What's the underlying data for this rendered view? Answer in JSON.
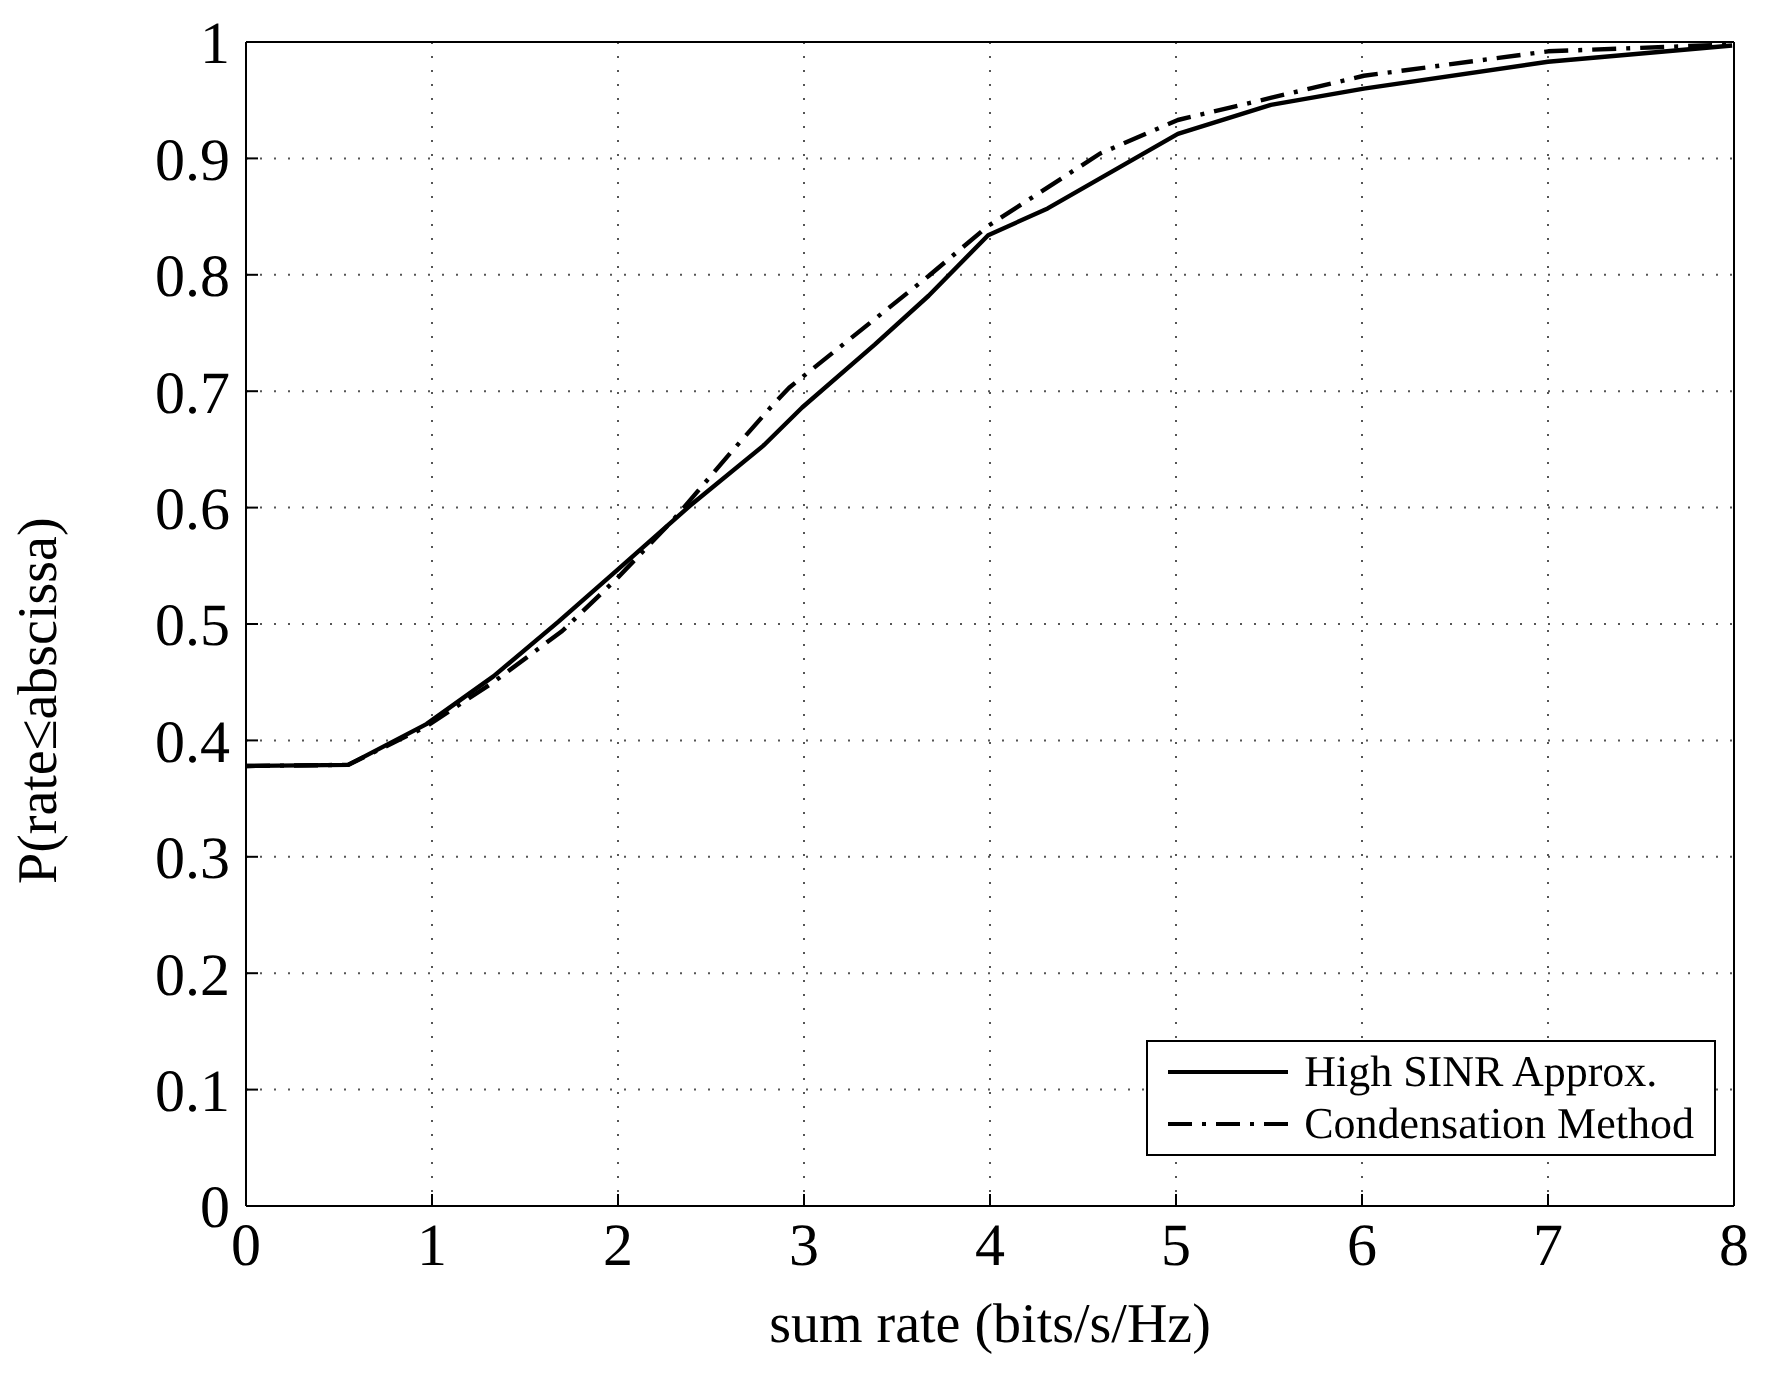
{
  "chart_data": {
    "type": "line",
    "xlabel": "sum rate (bits/s/Hz)",
    "ylabel": "P(rate≤abscissa)",
    "xlim": [
      0,
      8
    ],
    "ylim": [
      0,
      1
    ],
    "xticks": [
      0,
      1,
      2,
      3,
      4,
      5,
      6,
      7,
      8
    ],
    "yticks": [
      0,
      0.1,
      0.2,
      0.3,
      0.4,
      0.5,
      0.6,
      0.7,
      0.8,
      0.9,
      1
    ],
    "grid": true,
    "legend": "bottom right",
    "marker": "none",
    "series": [
      {
        "name": "High SINR Approx.",
        "color": "#000000",
        "line_style": "solid",
        "x": [
          0,
          0.55,
          0.97,
          1.33,
          1.68,
          2.0,
          2.39,
          2.78,
          2.99,
          3.38,
          3.67,
          3.99,
          4.31,
          5.01,
          5.51,
          6.01,
          7.0,
          7.99
        ],
        "values": [
          0.378,
          0.379,
          0.414,
          0.455,
          0.502,
          0.547,
          0.602,
          0.653,
          0.686,
          0.74,
          0.782,
          0.834,
          0.857,
          0.921,
          0.946,
          0.96,
          0.983,
          0.997
        ]
      },
      {
        "name": "Condensation Method",
        "color": "#000000",
        "line_style": "dashdot",
        "x": [
          0,
          0.55,
          0.97,
          1.33,
          1.7,
          2.0,
          2.3,
          2.61,
          2.82,
          2.92,
          3.67,
          3.99,
          4.59,
          5.01,
          6.01,
          7.0,
          8.0
        ],
        "values": [
          0.378,
          0.379,
          0.412,
          0.45,
          0.494,
          0.54,
          0.59,
          0.648,
          0.686,
          0.703,
          0.799,
          0.842,
          0.904,
          0.933,
          0.971,
          0.992,
          0.998
        ]
      }
    ]
  }
}
